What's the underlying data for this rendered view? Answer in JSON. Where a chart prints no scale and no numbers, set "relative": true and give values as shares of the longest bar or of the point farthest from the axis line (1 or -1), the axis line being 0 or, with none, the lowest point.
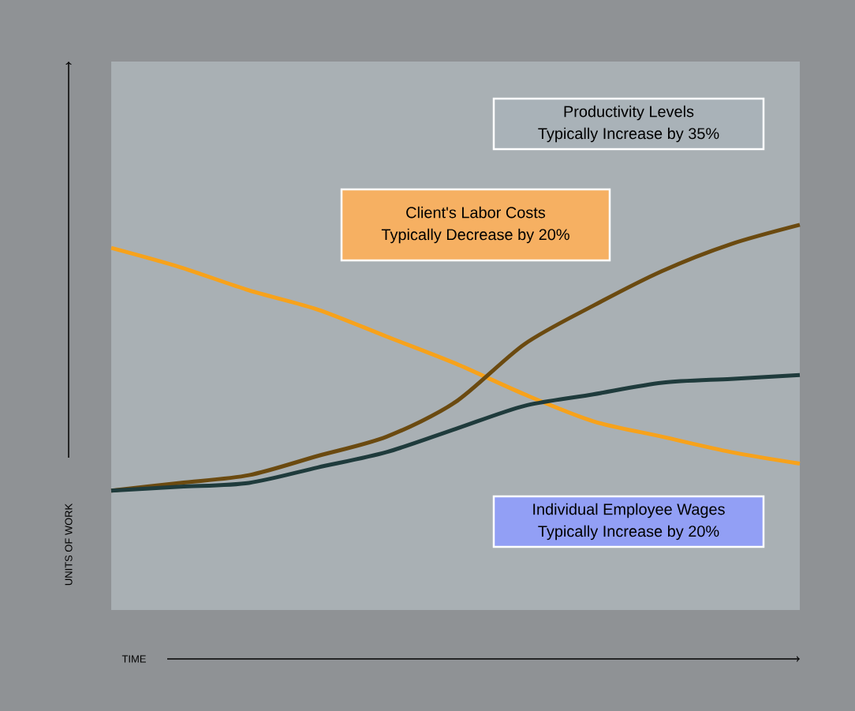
{
  "chart_data": {
    "type": "line",
    "relative": true,
    "xlabel": "TIME",
    "ylabel": "UNITS OF WORK",
    "categories": [
      null,
      null,
      null,
      null,
      null,
      null,
      null,
      null,
      null,
      null,
      null
    ],
    "series": [
      {
        "color": "#f7a21b",
        "values": [
          0.94,
          0.89,
          0.83,
          0.78,
          0.71,
          0.64,
          0.56,
          0.49,
          0.45,
          0.41,
          0.38
        ]
      },
      {
        "color": "#6b4a10",
        "values": [
          0.31,
          0.33,
          0.35,
          0.4,
          0.45,
          0.54,
          0.69,
          0.79,
          0.88,
          0.95,
          1
        ]
      },
      {
        "color": "#1f3b3c",
        "values": [
          0.31,
          0.32,
          0.33,
          0.37,
          0.41,
          0.47,
          0.53,
          0.56,
          0.59,
          0.6,
          0.61
        ]
      }
    ],
    "annotations": [
      "Productivity Levels",
      "Typically Increase by 35%",
      "Client's Labor Costs",
      "Typically Decrease by 20%",
      "Individual Employee Wages",
      "Typically Increase by 20%"
    ]
  }
}
